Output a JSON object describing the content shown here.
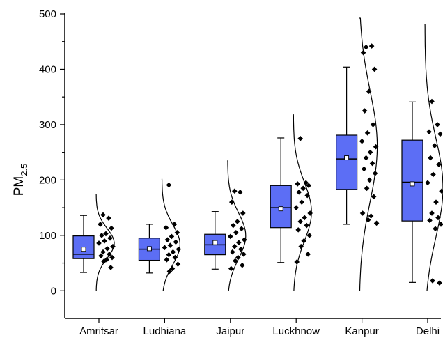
{
  "chart_data": {
    "type": "box",
    "ylabel": "PM",
    "ylabel_subscript": "2.5",
    "ylim": [
      -50,
      500
    ],
    "yticks": [
      0,
      100,
      200,
      300,
      400,
      500
    ],
    "grid": false,
    "box_color": "#5c6ef5",
    "categories": [
      "Amritsar",
      "Ludhiana",
      "Jaipur",
      "Luckhnow",
      "Kanpur",
      "Delhi"
    ],
    "series": [
      {
        "whisker_low": 33,
        "q1": 58,
        "median": 66,
        "q3": 99,
        "whisker_high": 136,
        "mean": 75,
        "points": [
          137,
          131,
          120,
          113,
          103,
          100,
          95,
          90,
          86,
          80,
          76,
          70,
          66,
          63,
          60,
          56,
          53,
          42
        ]
      },
      {
        "whisker_low": 32,
        "q1": 55,
        "median": 75,
        "q3": 95,
        "whisker_high": 120,
        "mean": 76,
        "points": [
          191,
          120,
          114,
          105,
          98,
          92,
          88,
          82,
          78,
          75,
          70,
          65,
          60,
          56,
          48,
          40,
          35
        ]
      },
      {
        "whisker_low": 39,
        "q1": 65,
        "median": 83,
        "q3": 102,
        "whisker_high": 143,
        "mean": 87,
        "points": [
          180,
          178,
          160,
          140,
          125,
          118,
          112,
          105,
          98,
          92,
          87,
          80,
          75,
          70,
          66,
          60,
          54,
          46,
          40
        ]
      },
      {
        "whisker_low": 51,
        "q1": 114,
        "median": 150,
        "q3": 190,
        "whisker_high": 276,
        "mean": 148,
        "points": [
          275,
          195,
          193,
          190,
          185,
          178,
          172,
          160,
          150,
          140,
          132,
          125,
          118,
          110,
          100,
          90,
          80,
          66,
          52
        ]
      },
      {
        "whisker_low": 120,
        "q1": 183,
        "median": 238,
        "q3": 281,
        "whisker_high": 404,
        "mean": 240,
        "points": [
          440,
          442,
          430,
          400,
          360,
          325,
          300,
          285,
          270,
          260,
          250,
          240,
          230,
          220,
          212,
          200,
          185,
          170,
          140,
          135,
          128,
          122
        ]
      },
      {
        "whisker_low": 15,
        "q1": 126,
        "median": 196,
        "q3": 272,
        "whisker_high": 341,
        "mean": 193,
        "points": [
          342,
          300,
          287,
          283,
          262,
          240,
          228,
          210,
          195,
          180,
          160,
          140,
          132,
          127,
          120,
          112,
          18,
          14
        ]
      }
    ]
  }
}
